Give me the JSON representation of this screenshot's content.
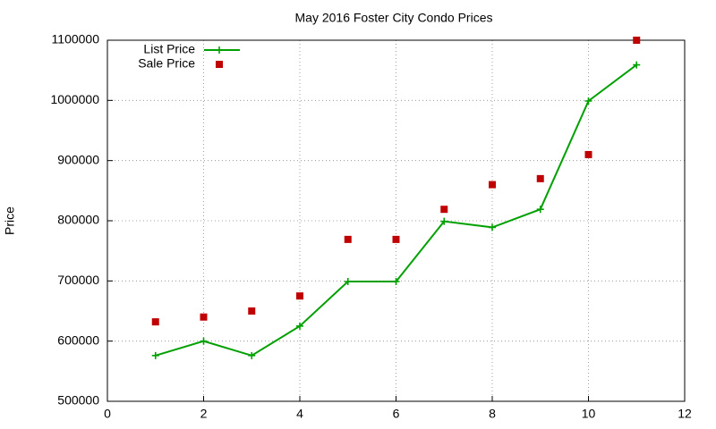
{
  "chart_data": {
    "type": "line",
    "title": "May 2016 Foster City Condo Prices",
    "y_label": "Price",
    "x": [
      1,
      2,
      3,
      4,
      5,
      6,
      7,
      8,
      9,
      10,
      11
    ],
    "series": [
      {
        "name": "List Price",
        "color": "#00a000",
        "style": "linespoints",
        "values": [
          576000,
          600000,
          576000,
          625000,
          699000,
          699000,
          799000,
          789000,
          819000,
          999000,
          1059000
        ]
      },
      {
        "name": "Sale Price",
        "color": "#c00000",
        "style": "points",
        "values": [
          632000,
          640000,
          650000,
          675000,
          769000,
          769000,
          819000,
          860000,
          870000,
          910000,
          1100000
        ]
      }
    ],
    "xlim": [
      0,
      12
    ],
    "xticks": [
      0,
      2,
      4,
      6,
      8,
      10,
      12
    ],
    "ylim": [
      500000,
      1100000
    ],
    "yticks": [
      500000,
      600000,
      700000,
      800000,
      900000,
      1000000,
      1100000
    ],
    "grid": true,
    "legend": "top left"
  }
}
